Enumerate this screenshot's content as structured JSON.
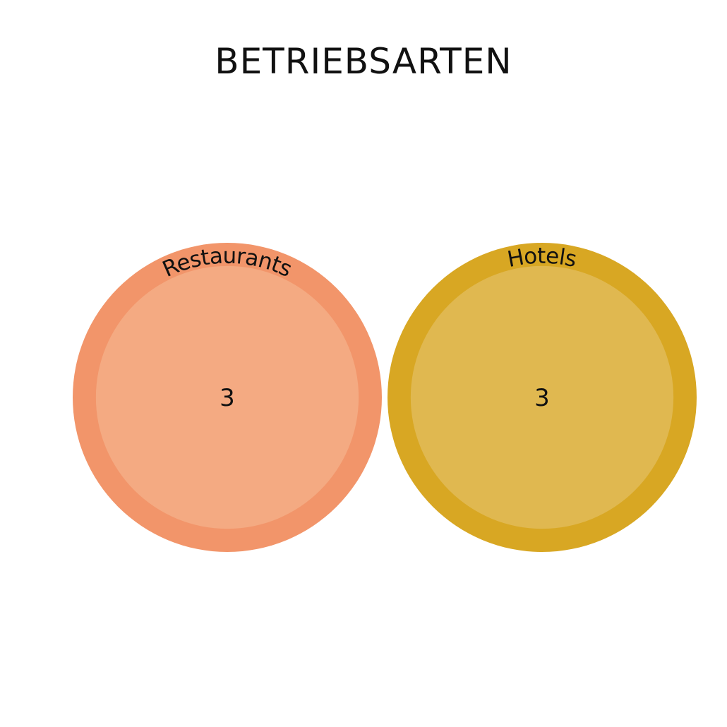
{
  "chart_data": {
    "type": "bubble",
    "title": "BETRIEBSARTEN",
    "categories": [
      "Restaurants",
      "Hotels"
    ],
    "values": [
      3,
      3
    ],
    "colors": [
      {
        "outer": "#F2956A",
        "inner": "#F4AA82"
      },
      {
        "outer": "#D8A723",
        "inner": "#E0B850"
      }
    ],
    "legend": "none",
    "grid": false
  }
}
